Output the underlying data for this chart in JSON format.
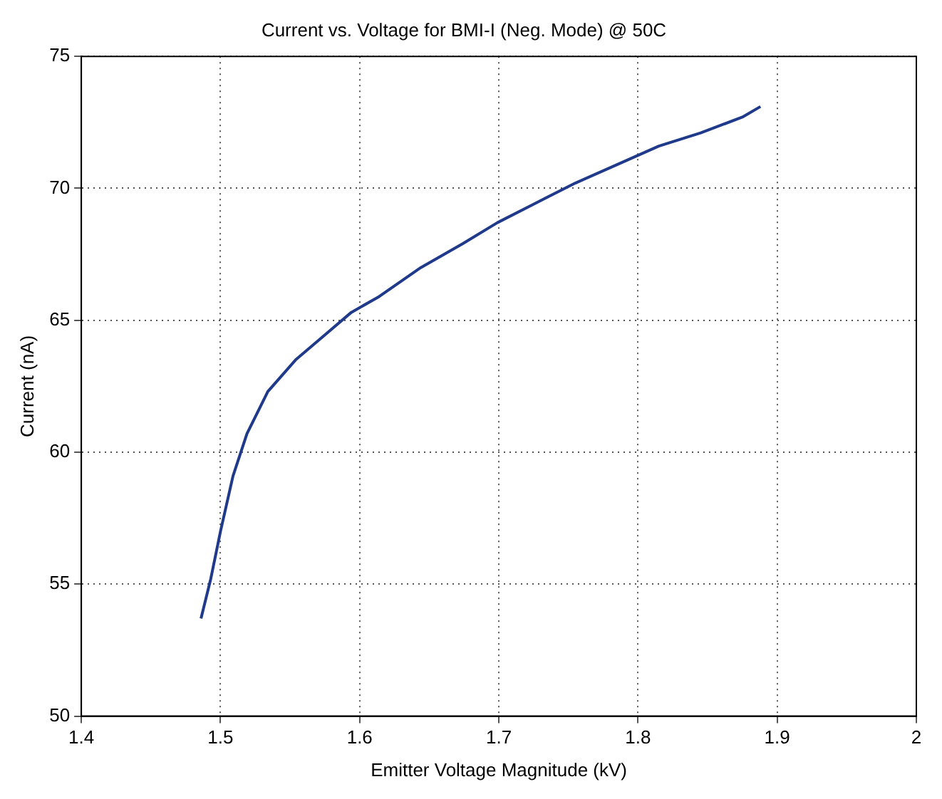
{
  "chart_data": {
    "type": "line",
    "title": "Current vs. Voltage for BMI-I (Neg. Mode) @ 50C",
    "xlabel": "Emitter Voltage Magnitude (kV)",
    "ylabel": "Current (nA)",
    "x": [
      1.486,
      1.493,
      1.5,
      1.509,
      1.519,
      1.534,
      1.554,
      1.574,
      1.594,
      1.614,
      1.644,
      1.674,
      1.699,
      1.725,
      1.755,
      1.785,
      1.815,
      1.845,
      1.875,
      1.888
    ],
    "series": [
      {
        "color": "#1f3a8a",
        "values": [
          53.7,
          55.2,
          57.0,
          59.1,
          60.7,
          62.3,
          63.5,
          64.4,
          65.3,
          65.9,
          67.0,
          67.9,
          68.7,
          69.4,
          70.2,
          70.9,
          71.6,
          72.1,
          72.7,
          73.1
        ]
      }
    ],
    "xlim": [
      1.4,
      2
    ],
    "xticks": [
      1.4,
      1.5,
      1.6,
      1.7,
      1.8,
      1.9,
      2
    ],
    "ylim": [
      50,
      75
    ],
    "yticks": [
      50,
      55,
      60,
      65,
      70,
      75
    ],
    "grid": true,
    "marker": "none",
    "line_style": "solid",
    "legend": false
  }
}
